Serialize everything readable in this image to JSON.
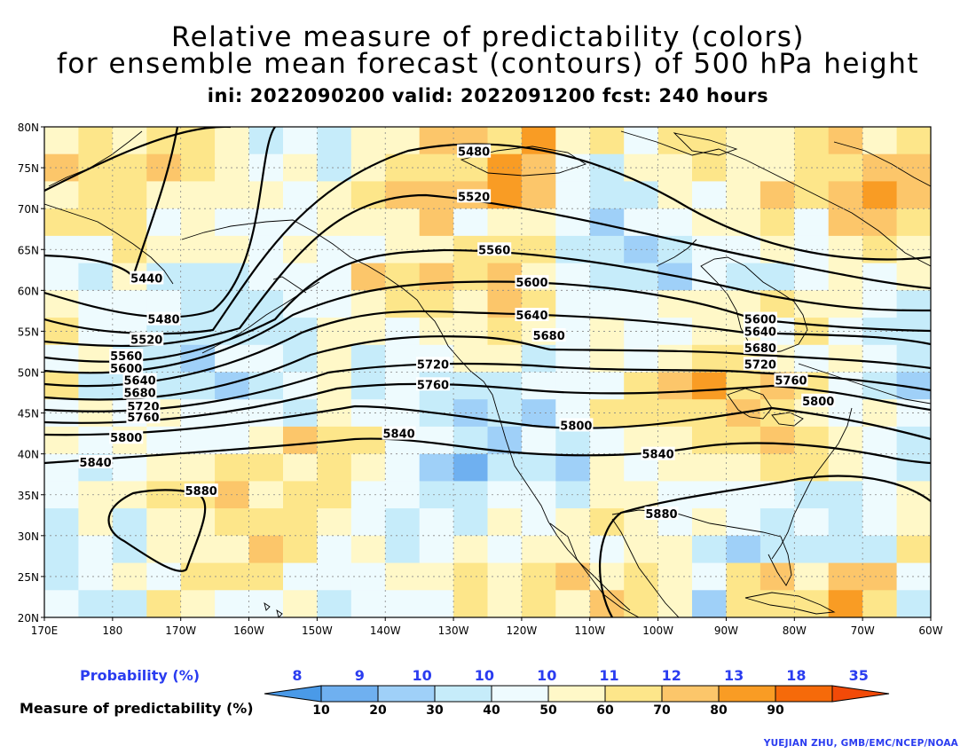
{
  "title": {
    "line1": "Relative measure of predictability (colors)",
    "line2": "for ensemble mean forecast (contours) of 500 hPa height",
    "line3": "ini: 2022090200 valid: 2022091200 fcst: 240 hours"
  },
  "map": {
    "lat_labels": [
      "80N",
      "75N",
      "70N",
      "65N",
      "60N",
      "55N",
      "50N",
      "45N",
      "40N",
      "35N",
      "30N",
      "25N",
      "20N"
    ],
    "lon_labels": [
      "170E",
      "180",
      "170W",
      "160W",
      "150W",
      "140W",
      "130W",
      "120W",
      "110W",
      "100W",
      "90W",
      "80W",
      "70W",
      "60W"
    ],
    "lat_range": [
      20,
      80
    ],
    "lon_range": [
      170,
      300
    ],
    "grid": true,
    "contour_labels": [
      {
        "text": "5480",
        "lon": 233.0,
        "lat": 77.0
      },
      {
        "text": "5520",
        "lon": 233.0,
        "lat": 71.5
      },
      {
        "text": "5560",
        "lon": 236.0,
        "lat": 65.0
      },
      {
        "text": "5440",
        "lon": 185.0,
        "lat": 61.5
      },
      {
        "text": "5600",
        "lon": 241.5,
        "lat": 61.0
      },
      {
        "text": "5480",
        "lon": 187.5,
        "lat": 56.5
      },
      {
        "text": "5640",
        "lon": 241.5,
        "lat": 57.0
      },
      {
        "text": "5600",
        "lon": 275.0,
        "lat": 56.5
      },
      {
        "text": "5640",
        "lon": 275.0,
        "lat": 55.0
      },
      {
        "text": "5680",
        "lon": 244.0,
        "lat": 54.5
      },
      {
        "text": "5680",
        "lon": 275.0,
        "lat": 53.0
      },
      {
        "text": "5520",
        "lon": 185.0,
        "lat": 54.0
      },
      {
        "text": "5560",
        "lon": 182.0,
        "lat": 52.0
      },
      {
        "text": "5720",
        "lon": 227.0,
        "lat": 51.0
      },
      {
        "text": "5720",
        "lon": 275.0,
        "lat": 51.0
      },
      {
        "text": "5600",
        "lon": 182.0,
        "lat": 50.5
      },
      {
        "text": "5760",
        "lon": 227.0,
        "lat": 48.5
      },
      {
        "text": "5760",
        "lon": 279.5,
        "lat": 49.0
      },
      {
        "text": "5640",
        "lon": 184.0,
        "lat": 49.0
      },
      {
        "text": "5680",
        "lon": 184.0,
        "lat": 47.5
      },
      {
        "text": "5800",
        "lon": 283.5,
        "lat": 46.5
      },
      {
        "text": "5720",
        "lon": 184.5,
        "lat": 45.8
      },
      {
        "text": "5760",
        "lon": 184.5,
        "lat": 44.5
      },
      {
        "text": "5800",
        "lon": 248.0,
        "lat": 43.5
      },
      {
        "text": "5840",
        "lon": 222.0,
        "lat": 42.5
      },
      {
        "text": "5800",
        "lon": 182.0,
        "lat": 42.0
      },
      {
        "text": "5840",
        "lon": 260.0,
        "lat": 40.0
      },
      {
        "text": "5840",
        "lon": 177.5,
        "lat": 39.0
      },
      {
        "text": "5880",
        "lon": 193.0,
        "lat": 35.5
      },
      {
        "text": "5880",
        "lon": 260.5,
        "lat": 32.7
      }
    ]
  },
  "legend": {
    "probability_label": "Probability (%)",
    "measure_label": "Measure of predictability (%)",
    "probabilities": [
      "8",
      "9",
      "10",
      "10",
      "10",
      "11",
      "12",
      "13",
      "18",
      "35"
    ],
    "ticks": [
      "10",
      "20",
      "30",
      "40",
      "50",
      "60",
      "70",
      "80",
      "90"
    ],
    "colors": [
      "#4a9ae8",
      "#6fb0f0",
      "#9fd0f8",
      "#c6ecfa",
      "#eefbfe",
      "#fff8c8",
      "#fde68a",
      "#fcc66a",
      "#f99c24",
      "#f66a0a",
      "#f24a08"
    ]
  },
  "credit": "YUEJIAN ZHU, GMB/EMC/NCEP/NOAA"
}
